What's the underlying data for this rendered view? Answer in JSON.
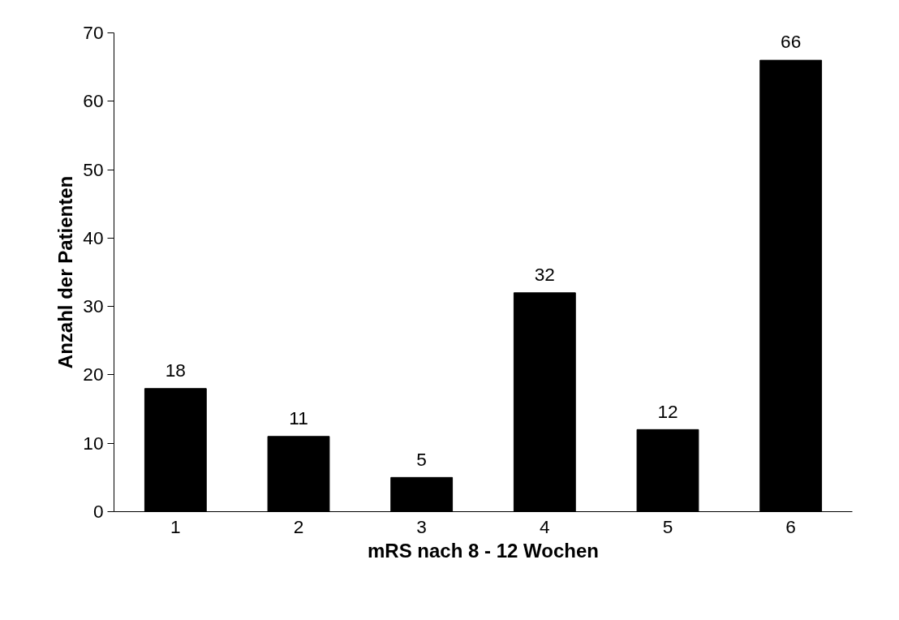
{
  "chart_data": {
    "type": "bar",
    "xlabel": "mRS nach 8 - 12 Wochen",
    "ylabel": "Anzahl der Patienten",
    "categories": [
      "1",
      "2",
      "3",
      "4",
      "5",
      "6"
    ],
    "values": [
      18,
      11,
      5,
      32,
      12,
      66
    ],
    "color": "#000000",
    "ylim": [
      0,
      70
    ],
    "yticks": [
      0,
      10,
      20,
      30,
      40,
      50,
      60,
      70
    ],
    "grid": false,
    "data_labels": true
  }
}
